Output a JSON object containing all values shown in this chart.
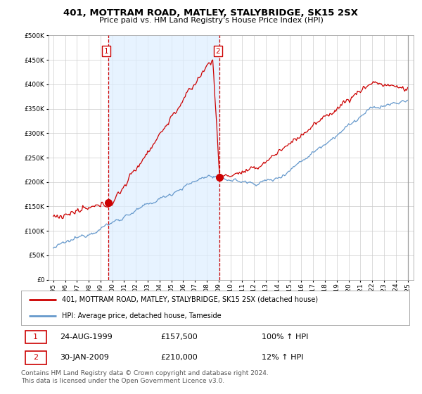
{
  "title": "401, MOTTRAM ROAD, MATLEY, STALYBRIDGE, SK15 2SX",
  "subtitle": "Price paid vs. HM Land Registry's House Price Index (HPI)",
  "red_label": "401, MOTTRAM ROAD, MATLEY, STALYBRIDGE, SK15 2SX (detached house)",
  "blue_label": "HPI: Average price, detached house, Tameside",
  "point1_date": "24-AUG-1999",
  "point1_price": 157500,
  "point1_pct": "100% ↑ HPI",
  "point2_date": "30-JAN-2009",
  "point2_price": 210000,
  "point2_pct": "12% ↑ HPI",
  "footer": "Contains HM Land Registry data © Crown copyright and database right 2024.\nThis data is licensed under the Open Government Licence v3.0.",
  "ylim": [
    0,
    500000
  ],
  "red_color": "#cc0000",
  "blue_color": "#6699cc",
  "fill_color": "#ddeeff",
  "background_color": "#ffffff",
  "grid_color": "#cccccc",
  "t1": 1999.64,
  "t2": 2009.08,
  "figwidth": 6.0,
  "figheight": 5.6
}
